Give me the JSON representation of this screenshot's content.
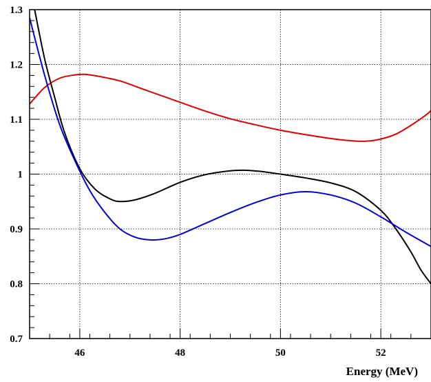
{
  "chart_data": {
    "type": "line",
    "title": "",
    "xlabel": "Energy (MeV)",
    "ylabel": "",
    "xlim": [
      45.0,
      53.0
    ],
    "ylim": [
      0.7,
      1.3
    ],
    "x_ticks": [
      46,
      48,
      50,
      52
    ],
    "x_tick_labels": [
      "46",
      "48",
      "50",
      "52"
    ],
    "y_ticks": [
      0.7,
      0.8,
      0.9,
      1.0,
      1.1,
      1.2,
      1.3
    ],
    "y_tick_labels": [
      "0.7",
      "0.8",
      "0.9",
      "1",
      "1.1",
      "1.2",
      "1.3"
    ],
    "grid": true,
    "series": [
      {
        "color": "#e00000",
        "x": [
          45.0,
          45.3,
          45.6,
          45.9,
          46.1,
          46.4,
          46.8,
          47.2,
          47.6,
          48.0,
          48.5,
          49.0,
          49.5,
          50.0,
          50.5,
          51.0,
          51.4,
          51.7,
          52.0,
          52.3,
          52.6,
          52.9,
          53.0
        ],
        "values": [
          1.128,
          1.158,
          1.175,
          1.181,
          1.182,
          1.178,
          1.17,
          1.157,
          1.144,
          1.131,
          1.115,
          1.101,
          1.09,
          1.08,
          1.072,
          1.065,
          1.061,
          1.06,
          1.064,
          1.073,
          1.089,
          1.108,
          1.116
        ]
      },
      {
        "color": "#000000",
        "x": [
          45.1,
          45.3,
          45.5,
          45.7,
          46.0,
          46.3,
          46.6,
          46.8,
          47.1,
          47.5,
          48.0,
          48.5,
          49.0,
          49.3,
          49.6,
          50.0,
          50.5,
          51.0,
          51.5,
          52.0,
          52.3,
          52.6,
          52.8,
          53.0
        ],
        "values": [
          1.3,
          1.21,
          1.14,
          1.075,
          1.01,
          0.973,
          0.955,
          0.95,
          0.953,
          0.965,
          0.985,
          0.999,
          1.006,
          1.007,
          1.005,
          1.0,
          0.993,
          0.984,
          0.968,
          0.934,
          0.9,
          0.858,
          0.825,
          0.8
        ]
      },
      {
        "color": "#0000dd",
        "x": [
          45.0,
          45.3,
          45.6,
          45.9,
          46.2,
          46.5,
          46.8,
          47.1,
          47.4,
          47.7,
          48.0,
          48.5,
          49.0,
          49.5,
          50.0,
          50.5,
          51.0,
          51.5,
          52.0,
          52.5,
          53.0
        ],
        "values": [
          1.285,
          1.18,
          1.09,
          1.025,
          0.97,
          0.93,
          0.9,
          0.885,
          0.88,
          0.882,
          0.89,
          0.91,
          0.93,
          0.948,
          0.962,
          0.968,
          0.962,
          0.947,
          0.922,
          0.894,
          0.868
        ]
      }
    ]
  }
}
